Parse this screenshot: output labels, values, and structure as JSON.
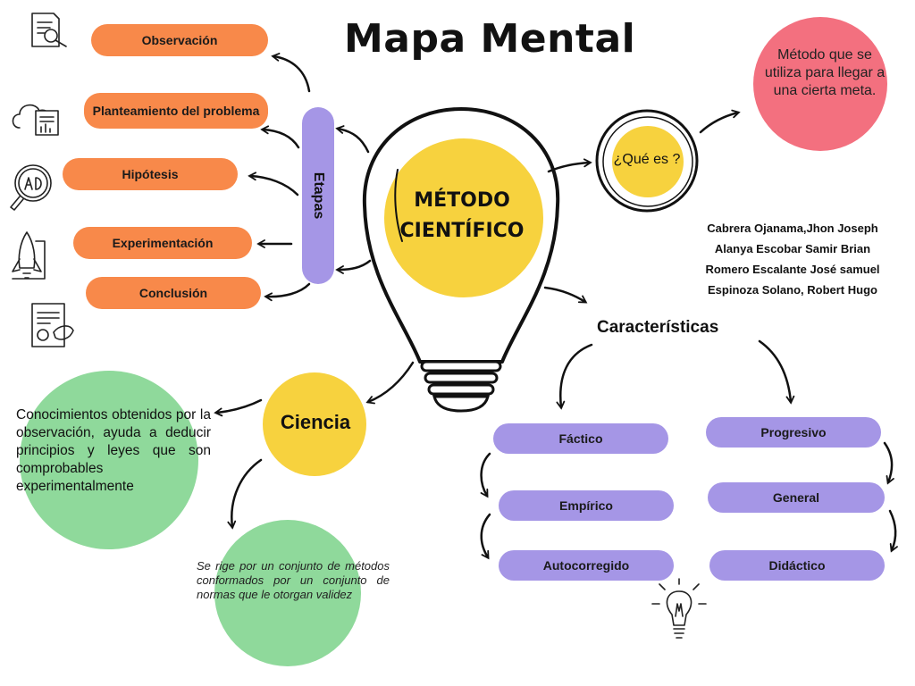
{
  "title": "Mapa Mental",
  "center": {
    "line1": "MÉTODO",
    "line2": "CIENTÍFICO"
  },
  "etapas": {
    "label": "Etapas",
    "items": [
      {
        "label": "Observación",
        "icon": "magnifier-document-icon"
      },
      {
        "label": "Planteamiento del problema",
        "icon": "cloud-report-icon"
      },
      {
        "label": "Hipótesis",
        "icon": "ad-magnifier-icon"
      },
      {
        "label": "Experimentación",
        "icon": "rocket-icon"
      },
      {
        "label": "Conclusión",
        "icon": "certificate-icon"
      }
    ]
  },
  "que_es": {
    "question": "¿Qué es ?",
    "definition": "Método que se utiliza para llegar a una cierta meta."
  },
  "authors": [
    "Cabrera Ojanama,Jhon Joseph",
    "Alanya Escobar Samir Brian",
    "Romero Escalante José samuel",
    "Espinoza Solano, Robert Hugo"
  ],
  "caracteristicas": {
    "label": "Características",
    "left": [
      "Fáctico",
      "Empírico",
      "Autocorregido"
    ],
    "right": [
      "Progresivo",
      "General",
      "Didáctico"
    ]
  },
  "ciencia": {
    "label": "Ciencia",
    "conocimientos": "Conocimientos obtenidos por la observación, ayuda a deducir principios y leyes que son comprobables experimentalmente",
    "rige": "Se rige por un conjunto de métodos conformados por un conjunto de normas que le otorgan validez"
  },
  "colors": {
    "orange": "#f8894a",
    "purple": "#a596e6",
    "yellow": "#f7d23e",
    "green": "#8fd99b",
    "pink": "#f3707f"
  }
}
